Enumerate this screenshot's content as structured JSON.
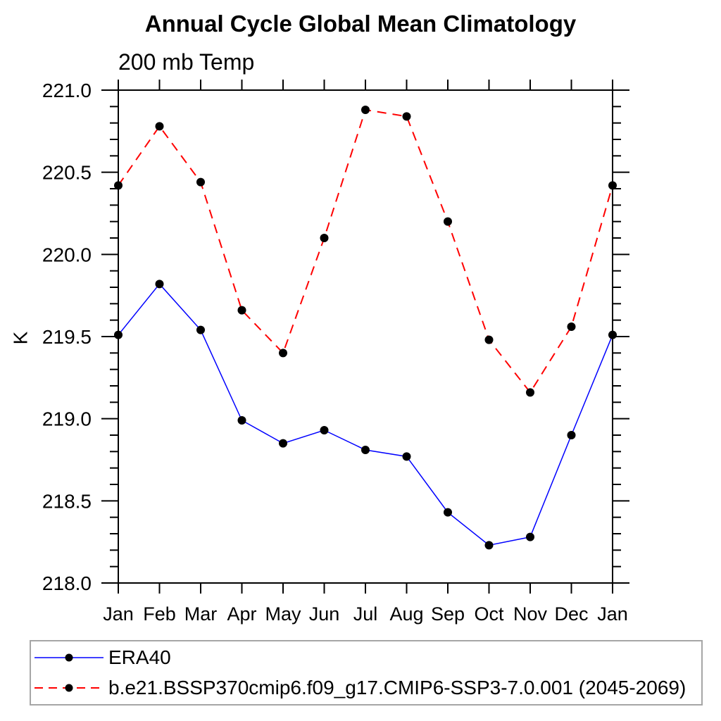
{
  "page": {
    "background": "#ffffff"
  },
  "chart_data": {
    "type": "line",
    "title": "Annual Cycle Global Mean Climatology",
    "subtitle": "200 mb Temp",
    "ylabel": "K",
    "xlabel": "",
    "categories": [
      "Jan",
      "Feb",
      "Mar",
      "Apr",
      "May",
      "Jun",
      "Jul",
      "Aug",
      "Sep",
      "Oct",
      "Nov",
      "Dec",
      "Jan"
    ],
    "series": [
      {
        "name": "ERA40",
        "line_color": "#0000ff",
        "line_style": "solid",
        "marker": "filled-circle",
        "marker_color": "#000000",
        "values": [
          219.51,
          219.82,
          219.54,
          218.99,
          218.85,
          218.93,
          218.81,
          218.77,
          218.43,
          218.23,
          218.28,
          218.9,
          219.51
        ]
      },
      {
        "name": "b.e21.BSSP370cmip6.f09_g17.CMIP6-SSP3-7.0.001 (2045-2069)",
        "line_color": "#ff0000",
        "line_style": "dashed",
        "marker": "filled-circle",
        "marker_color": "#000000",
        "values": [
          220.42,
          220.78,
          220.44,
          219.66,
          219.4,
          220.1,
          220.88,
          220.84,
          220.2,
          219.48,
          219.16,
          219.56,
          220.42
        ]
      }
    ],
    "ylim": [
      218.0,
      221.0
    ],
    "y_tick_labels": [
      "218.0",
      "218.5",
      "219.0",
      "219.5",
      "220.0",
      "220.5",
      "221.0"
    ],
    "y_major_tick_step": 0.5,
    "y_minor_tick_step": 0.1,
    "grid": false,
    "legend_position": "bottom-left",
    "axis_color": "#000000",
    "legend_border_color": "#a6a6a6"
  }
}
